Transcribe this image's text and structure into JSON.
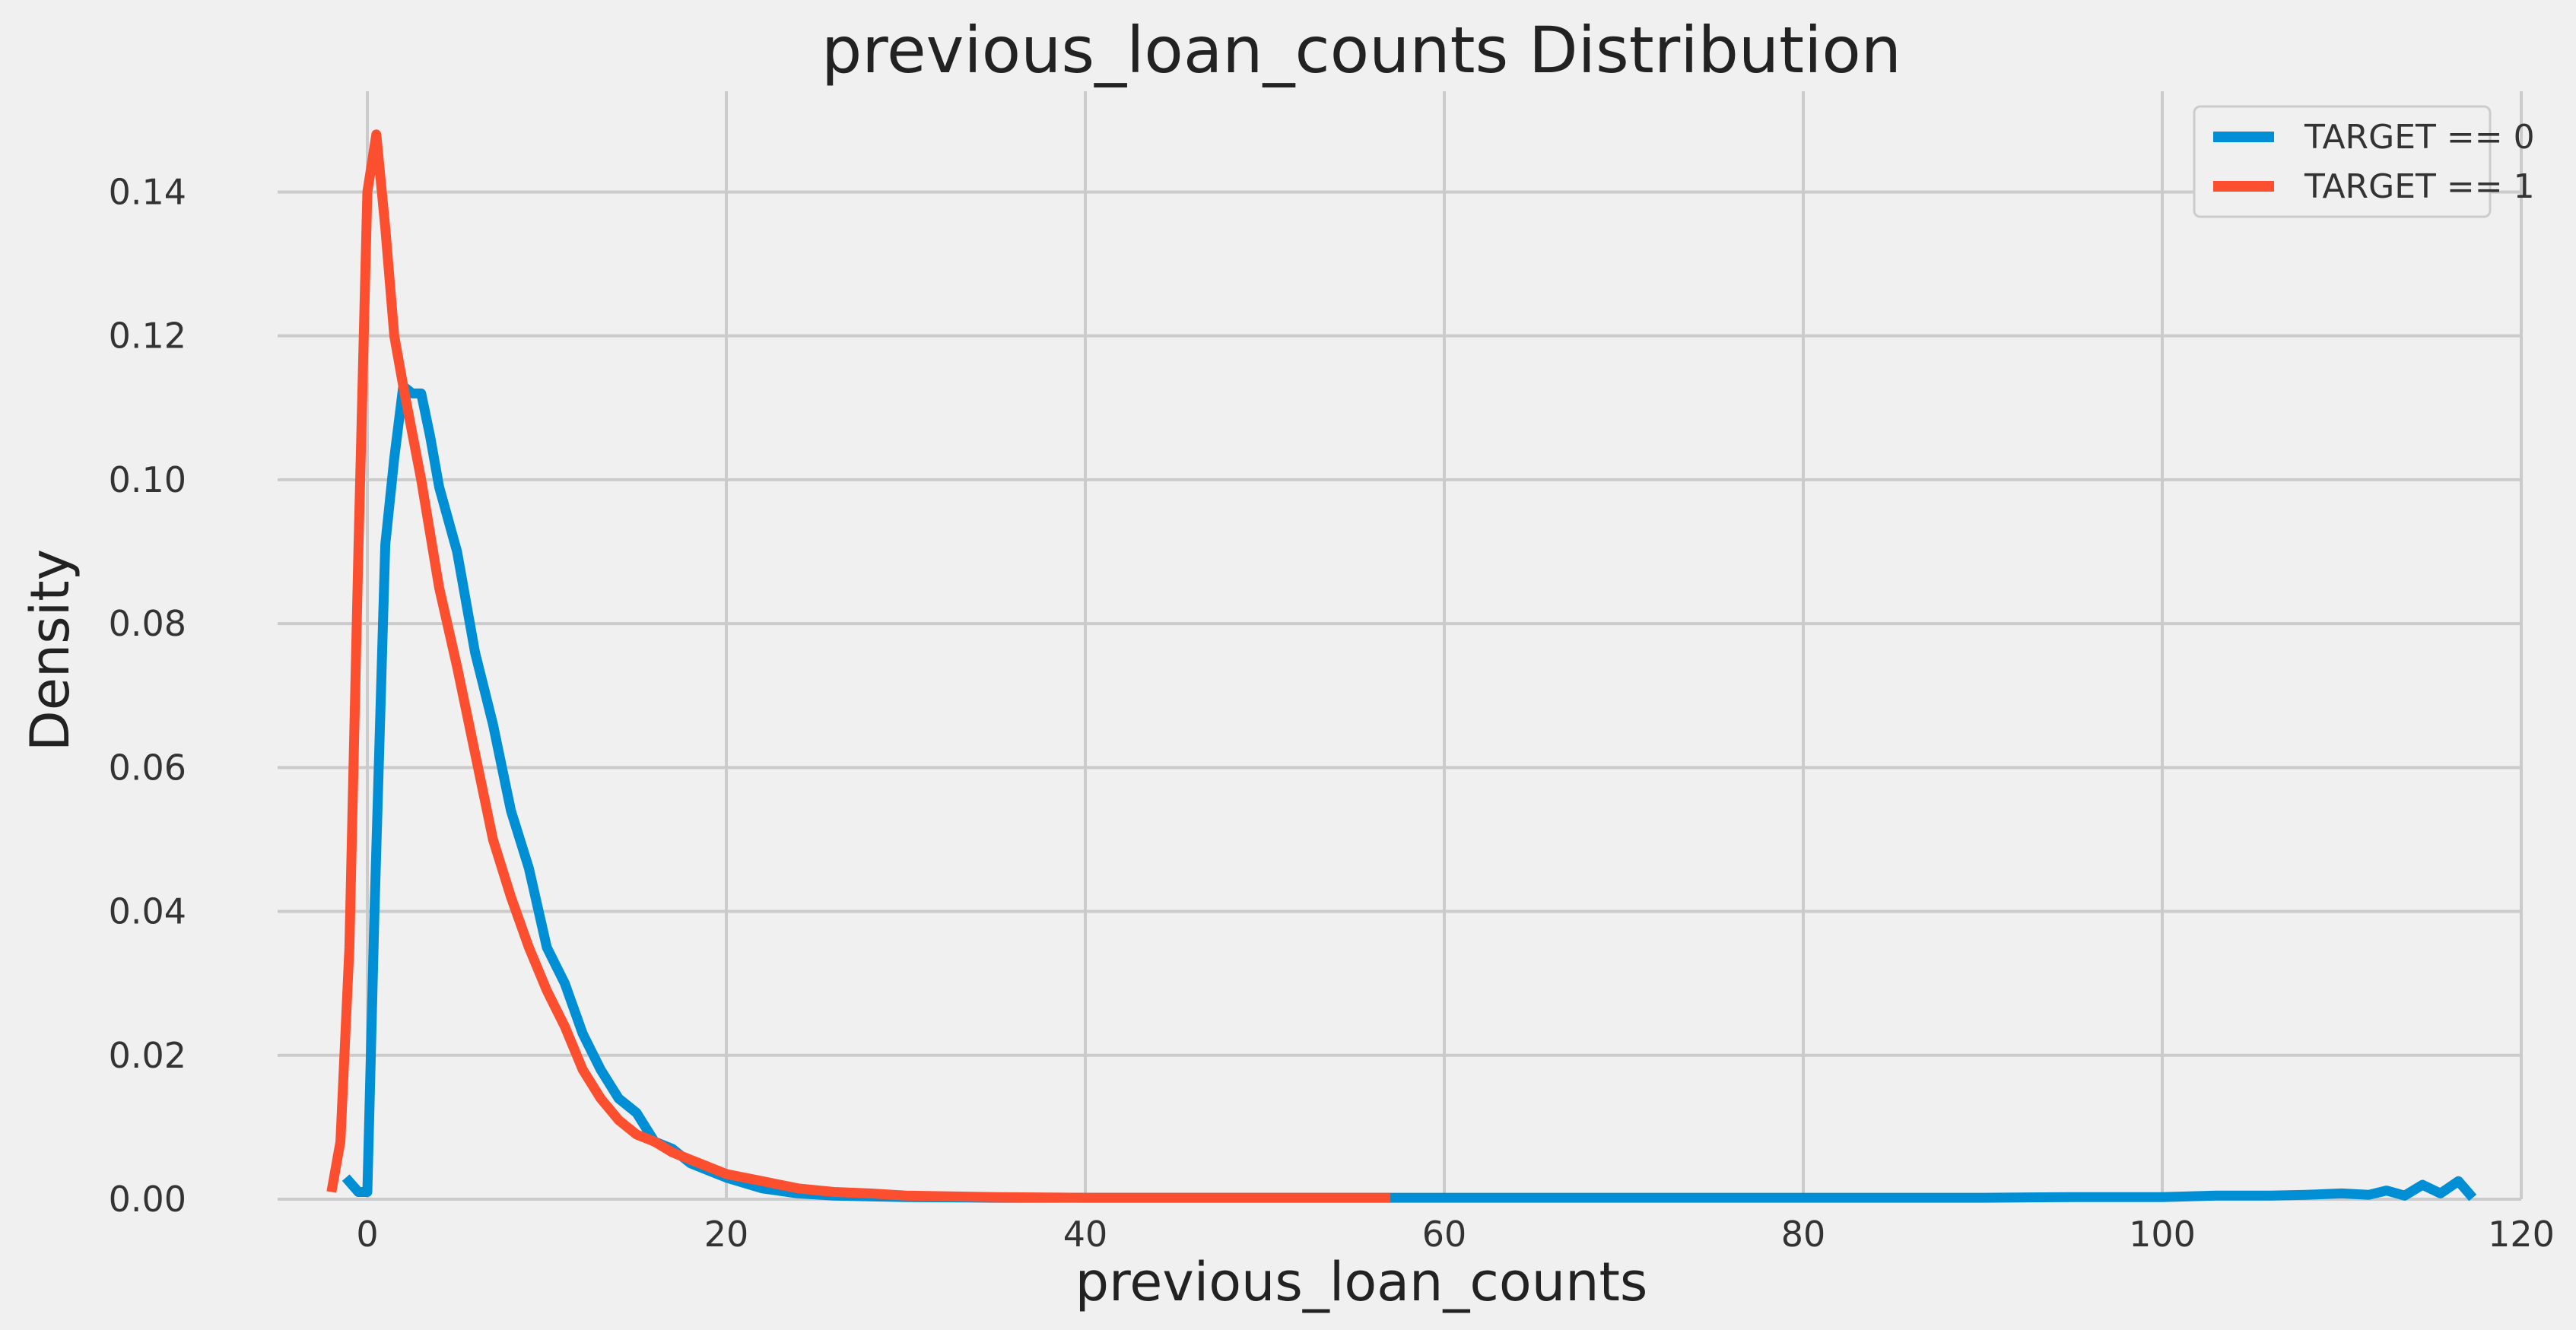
{
  "chart_data": {
    "type": "line",
    "title": "previous_loan_counts Distribution",
    "xlabel": "previous_loan_counts",
    "ylabel": "Density",
    "xlim": [
      -5,
      120
    ],
    "ylim": [
      0,
      0.154
    ],
    "xticks": [
      0,
      20,
      40,
      60,
      80,
      100,
      120
    ],
    "xtick_labels": [
      "0",
      "20",
      "40",
      "60",
      "80",
      "100",
      "120"
    ],
    "yticks": [
      0,
      0.02,
      0.04,
      0.06,
      0.08,
      0.1,
      0.12,
      0.14
    ],
    "ytick_labels": [
      "0.00",
      "0.02",
      "0.04",
      "0.06",
      "0.08",
      "0.10",
      "0.12",
      "0.14"
    ],
    "grid": true,
    "legend_position": "top-right",
    "series": [
      {
        "name": "TARGET == 0",
        "color": "#008fd5",
        "x": [
          -1.2,
          -0.5,
          0,
          0.4,
          1,
          1.5,
          2,
          2.5,
          3,
          3.5,
          4,
          5,
          6,
          7,
          8,
          9,
          10,
          11,
          12,
          13,
          14,
          15,
          16,
          17,
          18,
          19,
          20,
          22,
          24,
          26,
          28,
          30,
          35,
          40,
          50,
          60,
          70,
          80,
          90,
          95,
          100,
          103,
          106,
          108,
          110,
          111.5,
          112.5,
          113.5,
          114.5,
          115.5,
          116.5,
          117.3
        ],
        "y": [
          0.003,
          0.001,
          0.001,
          0.04,
          0.091,
          0.103,
          0.113,
          0.112,
          0.112,
          0.106,
          0.099,
          0.09,
          0.076,
          0.066,
          0.054,
          0.046,
          0.035,
          0.03,
          0.023,
          0.018,
          0.014,
          0.012,
          0.008,
          0.007,
          0.005,
          0.004,
          0.003,
          0.0015,
          0.0008,
          0.0005,
          0.0004,
          0.0003,
          0.0002,
          0.0002,
          0.0002,
          0.0002,
          0.0002,
          0.0002,
          0.0002,
          0.0003,
          0.0003,
          0.0005,
          0.0005,
          0.0006,
          0.0008,
          0.0006,
          0.0012,
          0.0005,
          0.002,
          0.0008,
          0.0025,
          0.0002
        ]
      },
      {
        "name": "TARGET == 1",
        "color": "#fc4f30",
        "x": [
          -2,
          -1.5,
          -1,
          -0.5,
          0,
          0.5,
          1,
          1.5,
          2,
          3,
          4,
          5,
          6,
          7,
          8,
          9,
          10,
          11,
          12,
          13,
          14,
          15,
          16,
          17,
          18,
          19,
          20,
          22,
          24,
          26,
          28,
          30,
          35,
          40,
          45,
          50,
          57
        ],
        "y": [
          0.001,
          0.008,
          0.035,
          0.09,
          0.14,
          0.148,
          0.135,
          0.12,
          0.113,
          0.1,
          0.085,
          0.074,
          0.062,
          0.05,
          0.042,
          0.035,
          0.029,
          0.024,
          0.018,
          0.014,
          0.011,
          0.009,
          0.008,
          0.0065,
          0.0055,
          0.0045,
          0.0035,
          0.0025,
          0.0015,
          0.001,
          0.0008,
          0.0005,
          0.0003,
          0.0002,
          0.0002,
          0.0002,
          0.0002
        ]
      }
    ]
  }
}
